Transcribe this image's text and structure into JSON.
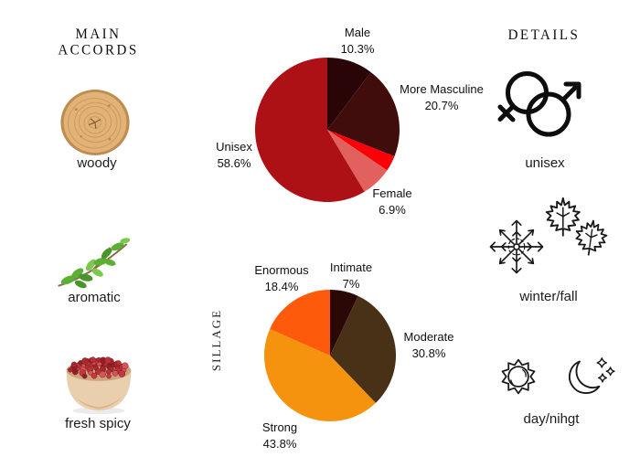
{
  "page": {
    "background_color": "#ffffff"
  },
  "left_column": {
    "title": "MAIN ACCORDS",
    "accords": [
      {
        "name": "woody",
        "image": "wood-slice"
      },
      {
        "name": "aromatic",
        "image": "herb-sprig"
      },
      {
        "name": "fresh spicy",
        "image": "peppercorn-bowl"
      }
    ]
  },
  "right_column": {
    "title": "DETAILS",
    "details": [
      {
        "label": "unisex",
        "icon": "gender-unisex"
      },
      {
        "label": "winter/fall",
        "icon": "snowflake-and-maple-leaves"
      },
      {
        "label": "day/nihgt",
        "icon": "sun-and-moon"
      }
    ]
  },
  "chart_data": [
    {
      "type": "pie",
      "name": "gender-votes",
      "start_angle_deg": 0,
      "direction": "clockwise",
      "slices": [
        {
          "label": "Male",
          "pct": "10.3%",
          "value": 10.3,
          "color": "#2a0507"
        },
        {
          "label": "More Masculine",
          "pct": "20.7%",
          "value": 20.7,
          "color": "#400c0c"
        },
        {
          "label": "",
          "pct": "",
          "value": 3.5,
          "color": "#f90107"
        },
        {
          "label": "Female",
          "pct": "6.9%",
          "value": 6.9,
          "color": "#e2615e"
        },
        {
          "label": "Unisex",
          "pct": "58.6%",
          "value": 58.6,
          "color": "#ad1116"
        }
      ]
    },
    {
      "type": "pie",
      "name": "sillage-votes",
      "axis_label": "SILLAGE",
      "start_angle_deg": 0,
      "direction": "clockwise",
      "slices": [
        {
          "label": "Intimate",
          "pct": "7%",
          "value": 7.0,
          "color": "#2a0805"
        },
        {
          "label": "Moderate",
          "pct": "30.8%",
          "value": 30.8,
          "color": "#493118"
        },
        {
          "label": "Strong",
          "pct": "43.8%",
          "value": 43.8,
          "color": "#f5920e"
        },
        {
          "label": "Enormous",
          "pct": "18.4%",
          "value": 18.4,
          "color": "#fe5a0c"
        }
      ]
    }
  ]
}
